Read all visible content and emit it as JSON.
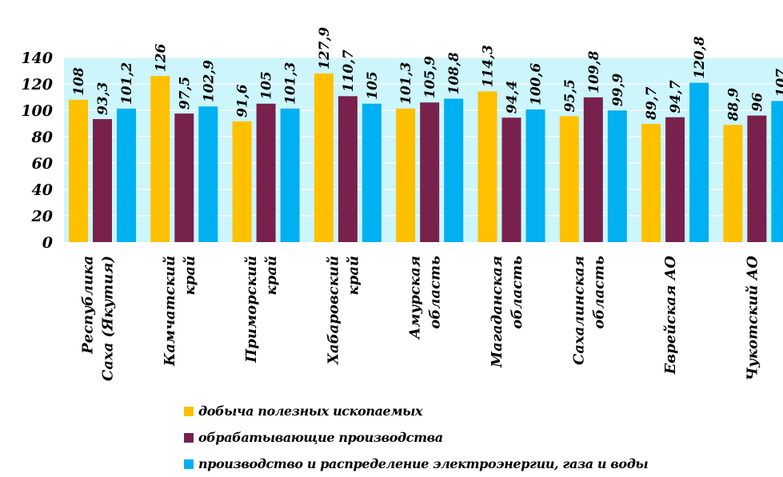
{
  "chart_data": {
    "type": "bar",
    "categories": [
      [
        "Республика",
        "Саха (Якутия)"
      ],
      [
        "Камчатский",
        "край"
      ],
      [
        "Приморский",
        "край"
      ],
      [
        "Хабаровский",
        "край"
      ],
      [
        "Амурская",
        "область"
      ],
      [
        "Магаданская",
        "область"
      ],
      [
        "Сахалинская",
        "область"
      ],
      [
        "Еврейская АО"
      ],
      [
        "Чукотский АО"
      ]
    ],
    "series": [
      {
        "name": "добыча полезных ископаемых",
        "color": "#FFC000",
        "values": [
          108,
          126,
          91.6,
          127.9,
          101.3,
          114.3,
          95.5,
          89.7,
          88.9
        ],
        "labels": [
          "108",
          "126",
          "91,6",
          "127,9",
          "101,3",
          "114,3",
          "95,5",
          "89,7",
          "88,9"
        ]
      },
      {
        "name": "обрабатывающие производства",
        "color": "#77214C",
        "values": [
          93.3,
          97.5,
          105,
          110.7,
          105.9,
          94.4,
          109.8,
          94.7,
          96
        ],
        "labels": [
          "93,3",
          "97,5",
          "105",
          "110,7",
          "105,9",
          "94,4",
          "109,8",
          "94,7",
          "96"
        ]
      },
      {
        "name": "производство и распределение электроэнергии, газа и воды",
        "color": "#00B0F0",
        "values": [
          101.2,
          102.9,
          101.3,
          105,
          108.8,
          100.6,
          99.9,
          120.8,
          107
        ],
        "labels": [
          "101,2",
          "102,9",
          "101,3",
          "105",
          "108,8",
          "100,6",
          "99,9",
          "120,8",
          "107"
        ]
      }
    ],
    "yticks": [
      "0",
      "20",
      "40",
      "60",
      "80",
      "100",
      "120",
      "140"
    ],
    "ylim": [
      0,
      140
    ],
    "plot_background": "#CCF5FC",
    "gridlines": true,
    "legend_position": "bottom"
  }
}
